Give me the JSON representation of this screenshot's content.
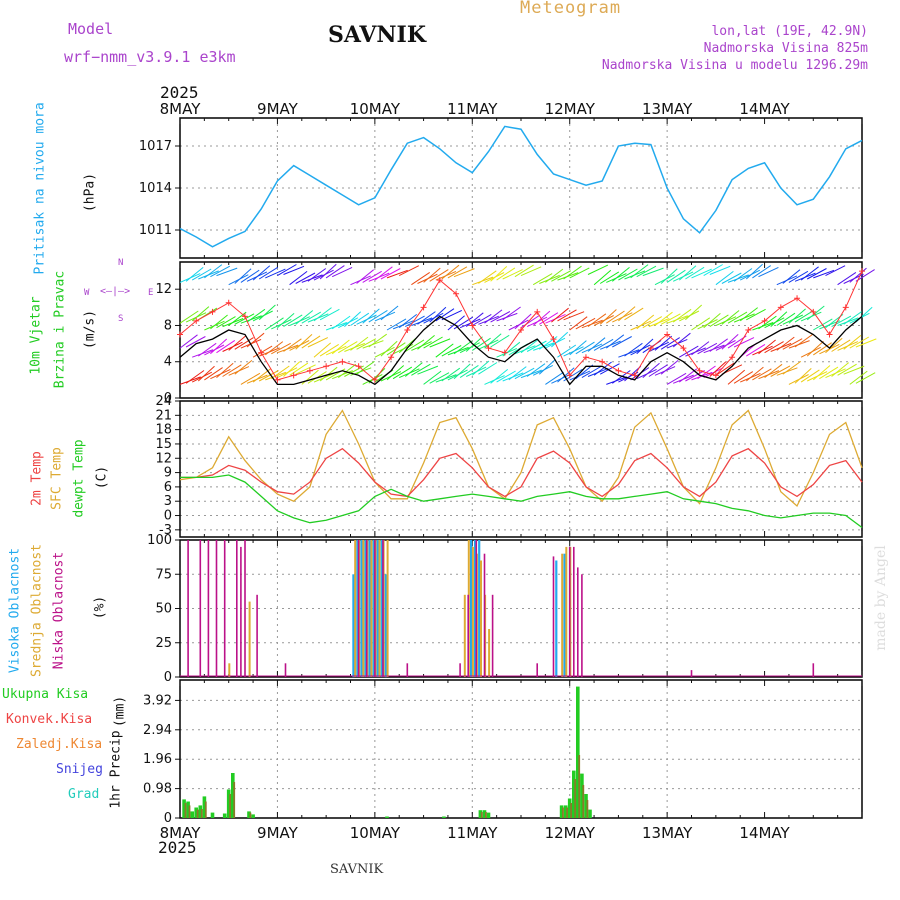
{
  "header": {
    "model_label": "Model",
    "model_value": "wrf−nmm_v3.9.1  e3km",
    "title": "SAVNIK",
    "meteogram": "Meteogram",
    "lonlat": "lon,lat (19E, 42.9N)",
    "elevation": "Nadmorska Visina 825m",
    "model_elevation": "Nadmorska Visina u modelu 1296.29m",
    "year": "2025",
    "watermark": "made by Angel",
    "footer": "SAVNIK",
    "wind_legend": [
      "W",
      "E",
      "N",
      "S"
    ]
  },
  "colors": {
    "pressure": "#22aaee",
    "temp": "#ee4444",
    "sfc": "#ddaa33",
    "dewp": "#22cc22",
    "wind_mean": "#000000",
    "gust": "#ff3333",
    "visoka": "#22aaee",
    "srednja": "#ddaa33",
    "niska": "#bb1188",
    "precip": "#22cc22",
    "konvek": "#ee4444",
    "zaledj": "#ee8833",
    "snijeg": "#4444dd",
    "grad": "#22ccbb",
    "purple": "#aa44cc"
  },
  "chart_data": [
    {
      "type": "line",
      "name": "pressure",
      "ylabel_main": "Pritisak na nivou mora",
      "ylabel_unit": "(hPa)",
      "ylim": [
        1009,
        1019
      ],
      "yticks": [
        1011,
        1014,
        1017
      ],
      "x_labels": [
        "8MAY",
        "9MAY",
        "10MAY",
        "11MAY",
        "12MAY",
        "13MAY",
        "14MAY"
      ],
      "x": [
        0,
        4,
        8,
        12,
        16,
        20,
        24,
        28,
        32,
        36,
        40,
        44,
        48,
        52,
        56,
        60,
        64,
        68,
        72,
        76,
        80,
        84,
        88,
        92,
        96,
        100,
        104,
        108,
        112,
        116,
        120,
        124,
        128,
        132,
        136,
        140,
        144,
        148,
        152,
        156,
        160,
        164,
        168
      ],
      "series": [
        {
          "name": "Pritisak",
          "values": [
            1011.1,
            1010.5,
            1009.8,
            1010.4,
            1010.9,
            1012.5,
            1014.5,
            1015.6,
            1014.9,
            1014.2,
            1013.5,
            1012.8,
            1013.3,
            1015.3,
            1017.2,
            1017.6,
            1016.8,
            1015.8,
            1015.1,
            1016.6,
            1018.4,
            1018.2,
            1016.4,
            1015.0,
            1014.6,
            1014.2,
            1014.5,
            1017.0,
            1017.2,
            1017.1,
            1014.0,
            1011.8,
            1010.8,
            1012.4,
            1014.6,
            1015.4,
            1015.8,
            1014.0,
            1012.8,
            1013.2,
            1014.8,
            1016.8,
            1017.4
          ]
        }
      ]
    },
    {
      "type": "line",
      "name": "wind",
      "ylabel_main": "10m Vjetar",
      "ylabel_sub": "Brzina i Pravac",
      "ylabel_unit": "(m/s)",
      "ylim": [
        0,
        15
      ],
      "yticks": [
        0,
        4,
        8,
        12
      ],
      "x": [
        0,
        4,
        8,
        12,
        16,
        20,
        24,
        28,
        32,
        36,
        40,
        44,
        48,
        52,
        56,
        60,
        64,
        68,
        72,
        76,
        80,
        84,
        88,
        92,
        96,
        100,
        104,
        108,
        112,
        116,
        120,
        124,
        128,
        132,
        136,
        140,
        144,
        148,
        152,
        156,
        160,
        164,
        168
      ],
      "series": [
        {
          "name": "Brzina",
          "values": [
            4.5,
            6.0,
            6.5,
            7.5,
            7.0,
            4.0,
            1.5,
            1.5,
            2.0,
            2.5,
            3.0,
            2.5,
            1.5,
            3.0,
            5.5,
            7.5,
            9.0,
            8.0,
            6.0,
            4.5,
            4.0,
            5.5,
            6.5,
            4.5,
            1.5,
            3.5,
            3.5,
            2.5,
            2.0,
            4.0,
            5.0,
            4.0,
            2.5,
            2.0,
            3.5,
            5.5,
            6.5,
            7.5,
            8.0,
            7.0,
            5.5,
            7.5,
            9.0
          ]
        },
        {
          "name": "Udari",
          "values": [
            7.0,
            8.5,
            9.5,
            10.5,
            9.0,
            5.0,
            2.0,
            2.5,
            3.0,
            3.5,
            4.0,
            3.5,
            2.0,
            4.5,
            7.5,
            10.0,
            13.0,
            11.5,
            8.0,
            5.5,
            5.0,
            7.5,
            9.5,
            6.5,
            2.5,
            4.5,
            4.0,
            3.0,
            2.5,
            5.5,
            7.0,
            5.5,
            3.0,
            2.5,
            4.5,
            7.5,
            8.5,
            10.0,
            11.0,
            9.5,
            7.0,
            10.0,
            14.0
          ]
        }
      ]
    },
    {
      "type": "line",
      "name": "temperature",
      "ylabel_main": "2m Temp",
      "ylabel_sub": "SFC Temp",
      "ylabel_sub2": "dewpt Temp",
      "ylabel_unit": "(C)",
      "ylim": [
        -4.5,
        24
      ],
      "yticks": [
        -3,
        0,
        3,
        6,
        9,
        12,
        15,
        18,
        21,
        24
      ],
      "x": [
        0,
        4,
        8,
        12,
        16,
        20,
        24,
        28,
        32,
        36,
        40,
        44,
        48,
        52,
        56,
        60,
        64,
        68,
        72,
        76,
        80,
        84,
        88,
        92,
        96,
        100,
        104,
        108,
        112,
        116,
        120,
        124,
        128,
        132,
        136,
        140,
        144,
        148,
        152,
        156,
        160,
        164,
        168
      ],
      "series": [
        {
          "name": "2m Temp",
          "values": [
            8,
            8,
            8.5,
            10.5,
            9.5,
            7,
            5,
            4.5,
            7,
            12,
            14,
            11,
            7,
            4.5,
            4,
            7.5,
            12,
            13,
            10,
            6,
            4,
            6,
            12,
            13.5,
            11,
            6,
            4,
            6.5,
            11.5,
            13,
            10,
            6,
            4,
            7,
            12.5,
            14,
            11,
            6,
            4,
            6.5,
            10.5,
            11.5,
            7
          ]
        },
        {
          "name": "SFC Temp",
          "values": [
            7.5,
            8,
            10,
            16.5,
            11.5,
            7.5,
            4.5,
            3,
            6,
            17,
            22,
            15,
            7,
            3.5,
            3.5,
            11,
            19.5,
            20.5,
            14,
            6,
            3.5,
            9,
            19,
            20.5,
            14,
            6,
            3,
            8,
            18.5,
            21.5,
            14,
            6,
            2.5,
            10,
            19,
            22,
            14,
            5,
            2,
            9,
            17,
            19.5,
            10
          ]
        },
        {
          "name": "dewpt Temp",
          "values": [
            8,
            8,
            8,
            8.5,
            7,
            4,
            1,
            -0.5,
            -1.5,
            -1,
            0,
            1,
            4,
            5.5,
            4,
            3,
            3.5,
            4,
            4.5,
            4,
            3.5,
            3,
            4,
            4.5,
            5,
            4,
            3.5,
            3.5,
            4,
            4.5,
            5,
            3.5,
            3,
            2.5,
            1.5,
            1,
            0,
            -0.5,
            0,
            0.5,
            0.5,
            0,
            -2.5
          ]
        }
      ]
    },
    {
      "type": "bar",
      "name": "cloud",
      "ylabel_main": "Visoka Oblacnost",
      "ylabel_sub": "Srednja Oblacnost",
      "ylabel_sub2": "Niska Oblacnost",
      "ylabel_unit": "(%)",
      "ylim": [
        0,
        100
      ],
      "yticks": [
        0,
        25,
        50,
        75,
        100
      ],
      "series": [
        {
          "name": "Visoka Oblacnost",
          "points": [
            [
              43,
              75
            ],
            [
              44,
              100
            ],
            [
              45,
              100
            ],
            [
              46,
              100
            ],
            [
              47,
              100
            ],
            [
              48,
              100
            ],
            [
              49,
              100
            ],
            [
              50,
              100
            ],
            [
              51,
              75
            ],
            [
              72,
              100
            ],
            [
              73,
              100
            ],
            [
              74,
              100
            ],
            [
              93,
              85
            ],
            [
              95,
              90
            ]
          ]
        },
        {
          "name": "Srednja Oblacnost",
          "points": [
            [
              12,
              10
            ],
            [
              17,
              55
            ],
            [
              43,
              100
            ],
            [
              44,
              100
            ],
            [
              45,
              100
            ],
            [
              46,
              100
            ],
            [
              47,
              100
            ],
            [
              48,
              100
            ],
            [
              49,
              100
            ],
            [
              50,
              100
            ],
            [
              51,
              100
            ],
            [
              70,
              60
            ],
            [
              71,
              100
            ],
            [
              72,
              95
            ],
            [
              73,
              90
            ],
            [
              74,
              85
            ],
            [
              75,
              60
            ],
            [
              76,
              35
            ],
            [
              94,
              90
            ],
            [
              95,
              95
            ],
            [
              96,
              95
            ]
          ]
        },
        {
          "name": "Niska Oblacnost",
          "points": [
            [
              2,
              100
            ],
            [
              5,
              100
            ],
            [
              7,
              100
            ],
            [
              9,
              100
            ],
            [
              11,
              100
            ],
            [
              14,
              100
            ],
            [
              15,
              95
            ],
            [
              16,
              100
            ],
            [
              19,
              60
            ],
            [
              26,
              10
            ],
            [
              44,
              100
            ],
            [
              46,
              100
            ],
            [
              48,
              100
            ],
            [
              50,
              100
            ],
            [
              56,
              10
            ],
            [
              71,
              60
            ],
            [
              73,
              100
            ],
            [
              75,
              90
            ],
            [
              77,
              60
            ],
            [
              69,
              10
            ],
            [
              96,
              95
            ],
            [
              97,
              95
            ],
            [
              98,
              80
            ],
            [
              99,
              75
            ],
            [
              92,
              88
            ],
            [
              88,
              10
            ],
            [
              126,
              5
            ],
            [
              156,
              10
            ]
          ]
        }
      ]
    },
    {
      "type": "bar",
      "name": "precip",
      "ylabel_main": "1hr Precip",
      "ylabel_unit": "(mm)",
      "legend": [
        "Ukupna Kisa",
        "Konvek.Kisa",
        "Zaledj.Kisa",
        "Snijeg",
        "Grad"
      ],
      "ylim": [
        0,
        4.6
      ],
      "yticks": [
        0,
        0.98,
        1.96,
        2.94,
        3.92
      ],
      "series": [
        {
          "name": "Ukupna Kisa",
          "points": [
            [
              1,
              0.62
            ],
            [
              2,
              0.55
            ],
            [
              3,
              0.22
            ],
            [
              4,
              0.35
            ],
            [
              5,
              0.42
            ],
            [
              6,
              0.72
            ],
            [
              8,
              0.18
            ],
            [
              11,
              0.15
            ],
            [
              12,
              0.95
            ],
            [
              13,
              1.5
            ],
            [
              17,
              0.22
            ],
            [
              18,
              0.12
            ],
            [
              51,
              0.05
            ],
            [
              65,
              0.05
            ],
            [
              74,
              0.26
            ],
            [
              75,
              0.26
            ],
            [
              76,
              0.18
            ],
            [
              94,
              0.42
            ],
            [
              95,
              0.42
            ],
            [
              96,
              0.65
            ],
            [
              97,
              1.58
            ],
            [
              98,
              4.38
            ],
            [
              99,
              1.48
            ],
            [
              100,
              0.8
            ],
            [
              101,
              0.28
            ]
          ]
        },
        {
          "name": "Konvek.Kisa",
          "points": [
            [
              1,
              0.5
            ],
            [
              2,
              0.42
            ],
            [
              4,
              0.28
            ],
            [
              5,
              0.3
            ],
            [
              6,
              0.55
            ],
            [
              12,
              0.8
            ],
            [
              13,
              1.2
            ],
            [
              17,
              0.18
            ],
            [
              74,
              0.2
            ],
            [
              75,
              0.2
            ],
            [
              94,
              0.35
            ],
            [
              95,
              0.35
            ],
            [
              96,
              0.5
            ],
            [
              97,
              1.3
            ],
            [
              98,
              2.1
            ],
            [
              99,
              1.1
            ],
            [
              100,
              0.6
            ]
          ]
        }
      ]
    }
  ]
}
